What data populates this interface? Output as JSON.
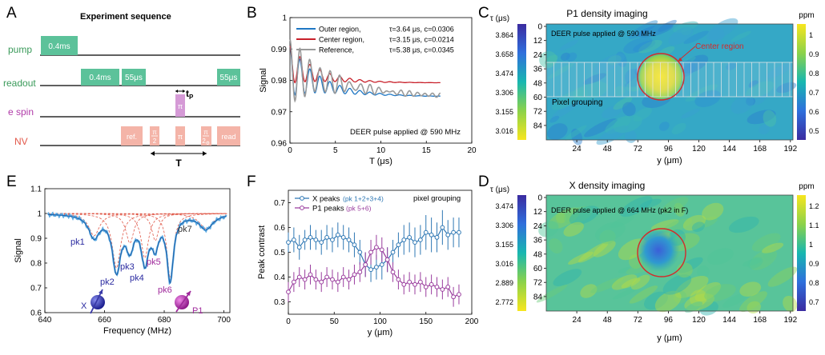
{
  "panels": {
    "A": {
      "letter": "A",
      "title": "Experiment sequence",
      "rows": [
        "pump",
        "readout",
        "e spin",
        "NV"
      ],
      "boxes": {
        "pump": "0.4ms",
        "readout1": "0.4ms",
        "readout2": "55μs",
        "readout3": "55μs",
        "espin": "π",
        "ref": "ref.",
        "pi2a_num": "π",
        "pi2a_den": "2",
        "pi": "π",
        "pi2b_num": "π",
        "pi2b_den": "2",
        "pi2b_sub": "Φ",
        "read": "read"
      },
      "tp_label": "t",
      "tp_sub": "P",
      "T_label": "T"
    },
    "B": {
      "letter": "B"
    },
    "C": {
      "letter": "C",
      "title": "P1 density imaging",
      "note": "DEER pulse applied @ 590 MHz",
      "center_label": "Center region",
      "pixel_label": "Pixel grouping",
      "xlabel": "y (μm)",
      "left_cb_title": "τ (μs)",
      "right_cb_title": "ppm",
      "left_cb_ticks": [
        "3.864",
        "3.658",
        "3.474",
        "3.306",
        "3.155",
        "3.016"
      ],
      "right_cb_ticks": [
        "1",
        "0.9",
        "0.8",
        "0.7",
        "0.6",
        "0.5"
      ],
      "xticks": [
        "24",
        "48",
        "72",
        "96",
        "120",
        "144",
        "168",
        "192"
      ],
      "yticks": [
        "0",
        "12",
        "24",
        "36",
        "48",
        "60",
        "72",
        "84"
      ]
    },
    "D": {
      "letter": "D",
      "title": "X density imaging",
      "note": "DEER pulse applied @ 664 MHz (pk2 in F)",
      "xlabel": "y (μm)",
      "left_cb_title": "τ (μs)",
      "right_cb_title": "ppm",
      "left_cb_ticks": [
        "3.474",
        "3.306",
        "3.155",
        "3.016",
        "2.889",
        "2.772"
      ],
      "right_cb_ticks": [
        "1.2",
        "1.1",
        "1",
        "0.9",
        "0.8",
        "0.7"
      ],
      "xticks": [
        "24",
        "48",
        "72",
        "96",
        "120",
        "144",
        "168",
        "192"
      ],
      "yticks": [
        "0",
        "12",
        "24",
        "36",
        "48",
        "60",
        "72",
        "84"
      ]
    },
    "E": {
      "letter": "E",
      "peaks": [
        "pk1",
        "pk2",
        "pk3",
        "pk4",
        "pk5",
        "pk6",
        "pk7"
      ],
      "spin_labels": [
        "X",
        "P1"
      ]
    },
    "F": {
      "letter": "F"
    }
  },
  "chart_data": [
    {
      "id": "B",
      "type": "line",
      "xlabel": "T (μs)",
      "ylabel": "Signal",
      "xlim": [
        0,
        20
      ],
      "ylim": [
        0.96,
        1.0
      ],
      "xticks": [
        "0",
        "5",
        "10",
        "15",
        "20"
      ],
      "yticks": [
        "0.96",
        "0.97",
        "0.98",
        "0.99",
        "1"
      ],
      "annotation": "DEER pulse applied @ 590 MHz",
      "series": [
        {
          "name": "Outer region,",
          "params": "τ=3.64 μs, c=0.0306",
          "color": "#1f77c4",
          "decay": {
            "start": 0.991,
            "offset": 0.9748,
            "tau": 3.64,
            "osc_amp": 0.016,
            "osc_period": 1.1,
            "osc_tau": 3.0
          }
        },
        {
          "name": "Center region,",
          "params": "τ=3.15 μs, c=0.0214",
          "color": "#c8202a",
          "decay": {
            "start": 0.991,
            "offset": 0.9792,
            "tau": 3.15,
            "osc_amp": 0.012,
            "osc_period": 1.1,
            "osc_tau": 2.8
          }
        },
        {
          "name": "Reference,",
          "params": "τ=5.38 μs, c=0.0345",
          "color": "#9a9a9a",
          "decay": {
            "start": 0.993,
            "offset": 0.9745,
            "tau": 5.38,
            "osc_amp": 0.02,
            "osc_period": 1.1,
            "osc_tau": 3.8
          }
        }
      ]
    },
    {
      "id": "E",
      "type": "line",
      "xlabel": "Frequency (MHz)",
      "ylabel": "Signal",
      "xlim": [
        640,
        702
      ],
      "ylim": [
        0.6,
        1.1
      ],
      "xticks": [
        "640",
        "660",
        "680",
        "700"
      ],
      "yticks": [
        "0.6",
        "0.7",
        "0.8",
        "0.9",
        "1",
        "1.1"
      ],
      "baseline": 1.0,
      "peaks": [
        {
          "label": "pk1",
          "center": 656.5,
          "depth": 0.09,
          "width": 2.2
        },
        {
          "label": "pk2",
          "center": 664.0,
          "depth": 0.22,
          "width": 1.7
        },
        {
          "label": "pk3",
          "center": 668.5,
          "depth": 0.12,
          "width": 1.6
        },
        {
          "label": "pk4",
          "center": 673.5,
          "depth": 0.18,
          "width": 1.5
        },
        {
          "label": "pk5",
          "center": 677.0,
          "depth": 0.11,
          "width": 1.4
        },
        {
          "label": "pk6",
          "center": 682.0,
          "depth": 0.26,
          "width": 1.3
        },
        {
          "label": "pk7",
          "center": 694.0,
          "depth": 0.06,
          "width": 2.8
        }
      ]
    },
    {
      "id": "F",
      "type": "line",
      "xlabel": "y (μm)",
      "ylabel": "Peak contrast",
      "xlim": [
        0,
        200
      ],
      "ylim": [
        0.25,
        0.75
      ],
      "xticks": [
        "0",
        "50",
        "100",
        "150",
        "200"
      ],
      "yticks": [
        "0.3",
        "0.4",
        "0.5",
        "0.6",
        "0.7"
      ],
      "annotation": "pixel grouping",
      "x": [
        0,
        6,
        12,
        18,
        24,
        30,
        36,
        42,
        48,
        54,
        60,
        66,
        72,
        78,
        84,
        90,
        96,
        102,
        108,
        114,
        120,
        126,
        132,
        138,
        144,
        150,
        156,
        162,
        168,
        174,
        180,
        186
      ],
      "series": [
        {
          "name": "X peaks",
          "detail": "(pk 1+2+3+4)",
          "color": "#2f78b4",
          "values": [
            0.54,
            0.55,
            0.52,
            0.55,
            0.56,
            0.55,
            0.54,
            0.56,
            0.55,
            0.57,
            0.56,
            0.55,
            0.53,
            0.5,
            0.45,
            0.43,
            0.44,
            0.45,
            0.47,
            0.5,
            0.53,
            0.55,
            0.56,
            0.54,
            0.55,
            0.58,
            0.57,
            0.56,
            0.6,
            0.57,
            0.58,
            0.58
          ],
          "errors": [
            0.04,
            0.05,
            0.05,
            0.04,
            0.05,
            0.04,
            0.05,
            0.05,
            0.05,
            0.05,
            0.05,
            0.05,
            0.05,
            0.05,
            0.05,
            0.05,
            0.05,
            0.06,
            0.05,
            0.05,
            0.05,
            0.06,
            0.06,
            0.06,
            0.06,
            0.07,
            0.07,
            0.06,
            0.07,
            0.06,
            0.06,
            0.06
          ]
        },
        {
          "name": "P1 peaks",
          "detail": "(pk 5+6)",
          "color": "#9a3d9e",
          "values": [
            0.34,
            0.38,
            0.4,
            0.39,
            0.41,
            0.39,
            0.38,
            0.4,
            0.39,
            0.38,
            0.4,
            0.39,
            0.41,
            0.42,
            0.45,
            0.5,
            0.52,
            0.51,
            0.47,
            0.42,
            0.39,
            0.37,
            0.38,
            0.37,
            0.38,
            0.36,
            0.37,
            0.36,
            0.35,
            0.36,
            0.32,
            0.33
          ],
          "errors": [
            0.04,
            0.04,
            0.04,
            0.04,
            0.04,
            0.04,
            0.04,
            0.04,
            0.04,
            0.04,
            0.04,
            0.04,
            0.04,
            0.04,
            0.05,
            0.05,
            0.05,
            0.05,
            0.05,
            0.04,
            0.04,
            0.04,
            0.04,
            0.04,
            0.04,
            0.04,
            0.04,
            0.04,
            0.04,
            0.04,
            0.04,
            0.04
          ]
        }
      ]
    }
  ]
}
